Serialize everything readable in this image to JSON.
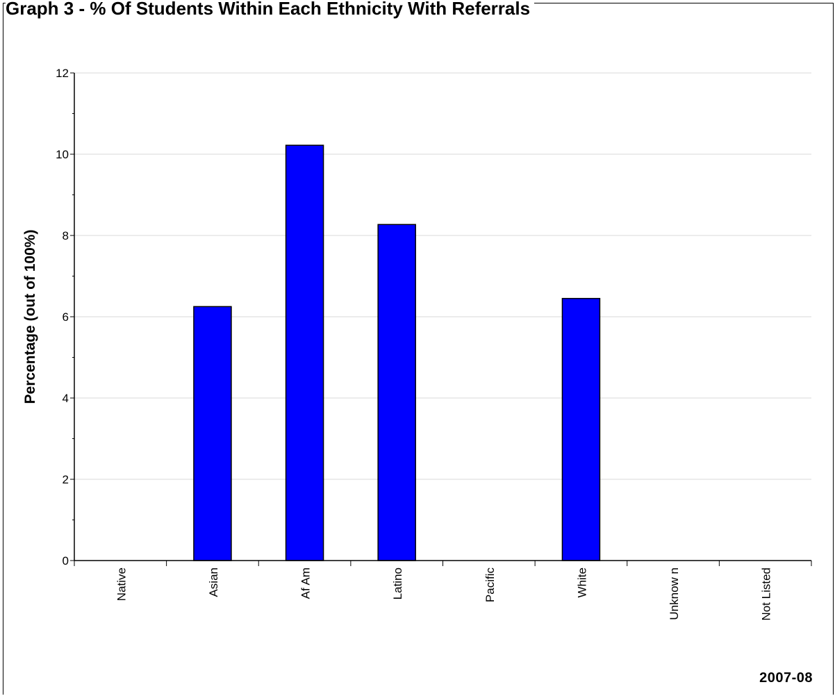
{
  "chart_data": {
    "type": "bar",
    "title": "Graph 3 - % Of Students Within Each Ethnicity With Referrals",
    "ylabel": "Percentage (out of 100%)",
    "xlabel": "",
    "footer": "2007-08",
    "categories": [
      "Native",
      "Asian",
      "Af Am",
      "Latino",
      "Pacific",
      "White",
      "Unknow n",
      "Not Listed"
    ],
    "values": [
      0,
      6.25,
      10.22,
      8.27,
      0,
      6.45,
      0,
      0
    ],
    "ylim": [
      0,
      12
    ],
    "yticks": [
      0,
      2,
      4,
      6,
      8,
      10,
      12
    ],
    "grid": true,
    "legend": "none",
    "colors": {
      "bar": "#0000ff",
      "bar_stroke": "#000000",
      "grid": "#d9d9d9",
      "axis": "#000000"
    }
  }
}
